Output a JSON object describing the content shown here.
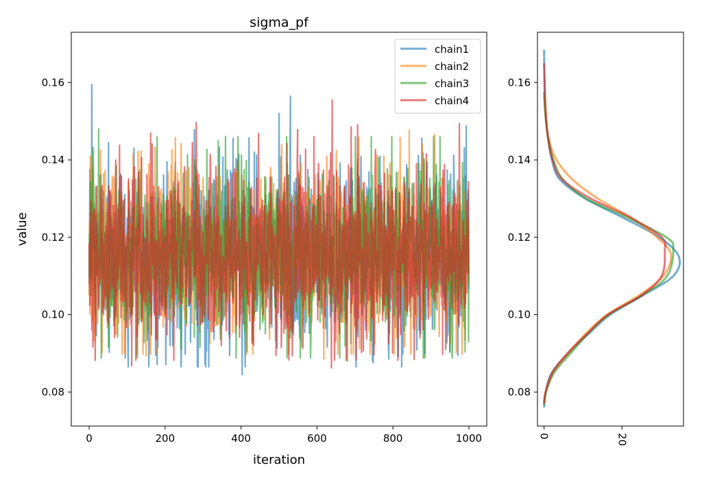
{
  "chart_data": [
    {
      "type": "line",
      "title": "sigma_pf",
      "xlabel": "iteration",
      "ylabel": "value",
      "xlim": [
        -47,
        1047
      ],
      "ylim": [
        0.0712,
        0.173
      ],
      "xticks": [
        0,
        200,
        400,
        600,
        800,
        1000
      ],
      "xtick_labels": [
        "0",
        "200",
        "400",
        "600",
        "800",
        "1000"
      ],
      "yticks": [
        0.08,
        0.1,
        0.12,
        0.14,
        0.16
      ],
      "ytick_labels": [
        "0.08",
        "0.10",
        "0.12",
        "0.14",
        "0.16"
      ],
      "grid": false,
      "legend_position": "top-right",
      "n_iterations": 1000,
      "series": [
        {
          "name": "chain1",
          "color": "#1f77b4",
          "mean": 0.1155,
          "sd": 0.0118,
          "min": 0.0845,
          "max": 0.1595,
          "peaks": [
            [
              7,
              0.1595
            ],
            [
              530,
              0.1565
            ],
            [
              500,
              0.152
            ],
            [
              993,
              0.1488
            ],
            [
              403,
              0.0845
            ],
            [
              53,
              0.0903
            ],
            [
              253,
              0.0898
            ],
            [
              175,
              0.0895
            ]
          ]
        },
        {
          "name": "chain2",
          "color": "#ff7f0e",
          "mean": 0.116,
          "sd": 0.0115,
          "min": 0.0878,
          "max": 0.1478,
          "peaks": [
            [
              843,
              0.1478
            ],
            [
              618,
              0.0885
            ],
            [
              910,
              0.1465
            ],
            [
              150,
              0.0893
            ],
            [
              3,
              0.141
            ]
          ]
        },
        {
          "name": "chain3",
          "color": "#2ca02c",
          "mean": 0.1158,
          "sd": 0.0114,
          "min": 0.0868,
          "max": 0.148,
          "peaks": [
            [
              25,
              0.148
            ],
            [
              340,
              0.145
            ],
            [
              680,
              0.088
            ],
            [
              950,
              0.0905
            ]
          ]
        },
        {
          "name": "chain4",
          "color": "#d62728",
          "mean": 0.1157,
          "sd": 0.0116,
          "min": 0.0862,
          "max": 0.1555,
          "peaks": [
            [
              640,
              0.1555
            ],
            [
              638,
              0.0862
            ],
            [
              112,
              0.0868
            ],
            [
              592,
              0.146
            ],
            [
              690,
              0.1485
            ]
          ]
        }
      ]
    },
    {
      "type": "line",
      "title": "",
      "xlabel": "",
      "ylabel": "",
      "xlim": [
        -1.7,
        35.8
      ],
      "ylim": [
        0.0712,
        0.173
      ],
      "xticks": [
        0,
        20
      ],
      "xtick_labels": [
        "0",
        "20"
      ],
      "yticks": [
        0.08,
        0.1,
        0.12,
        0.14,
        0.16
      ],
      "ytick_labels": [
        "0.08",
        "0.10",
        "0.12",
        "0.14",
        "0.16"
      ],
      "grid": false,
      "series": [
        {
          "name": "chain1",
          "color": "#1f77b4",
          "y_range": [
            0.076,
            0.1685
          ],
          "points": [
            [
              0.076,
              0.0
            ],
            [
              0.08,
              0.4
            ],
            [
              0.085,
              2.0
            ],
            [
              0.09,
              6.2
            ],
            [
              0.095,
              11.4
            ],
            [
              0.1,
              17.0
            ],
            [
              0.105,
              25.4
            ],
            [
              0.11,
              33.2
            ],
            [
              0.115,
              34.6
            ],
            [
              0.12,
              29.6
            ],
            [
              0.125,
              20.4
            ],
            [
              0.13,
              10.6
            ],
            [
              0.135,
              4.0
            ],
            [
              0.14,
              2.0
            ],
            [
              0.145,
              1.1
            ],
            [
              0.15,
              0.5
            ],
            [
              0.155,
              0.2
            ],
            [
              0.16,
              0.1
            ],
            [
              0.1685,
              0.0
            ]
          ]
        },
        {
          "name": "chain2",
          "color": "#ff7f0e",
          "y_range": [
            0.077,
            0.1565
          ],
          "points": [
            [
              0.077,
              0.0
            ],
            [
              0.08,
              0.4
            ],
            [
              0.085,
              2.3
            ],
            [
              0.09,
              6.2
            ],
            [
              0.095,
              10.6
            ],
            [
              0.1,
              16.2
            ],
            [
              0.105,
              24.4
            ],
            [
              0.11,
              30.6
            ],
            [
              0.1155,
              32.6
            ],
            [
              0.12,
              29.0
            ],
            [
              0.125,
              22.4
            ],
            [
              0.13,
              13.8
            ],
            [
              0.135,
              7.2
            ],
            [
              0.14,
              3.2
            ],
            [
              0.145,
              1.3
            ],
            [
              0.15,
              0.5
            ],
            [
              0.1565,
              0.0
            ]
          ]
        },
        {
          "name": "chain3",
          "color": "#2ca02c",
          "y_range": [
            0.0765,
            0.1575
          ],
          "points": [
            [
              0.0765,
              0.0
            ],
            [
              0.08,
              0.5
            ],
            [
              0.085,
              2.6
            ],
            [
              0.09,
              6.8
            ],
            [
              0.095,
              11.2
            ],
            [
              0.1,
              16.6
            ],
            [
              0.105,
              25.2
            ],
            [
              0.11,
              31.6
            ],
            [
              0.117,
              33.2
            ],
            [
              0.12,
              31.4
            ],
            [
              0.125,
              21.6
            ],
            [
              0.13,
              10.8
            ],
            [
              0.135,
              4.8
            ],
            [
              0.14,
              2.4
            ],
            [
              0.145,
              1.2
            ],
            [
              0.15,
              0.5
            ],
            [
              0.1575,
              0.0
            ]
          ]
        },
        {
          "name": "chain4",
          "color": "#d62728",
          "y_range": [
            0.077,
            0.165
          ],
          "points": [
            [
              0.077,
              0.0
            ],
            [
              0.08,
              0.4
            ],
            [
              0.085,
              2.1
            ],
            [
              0.09,
              6.0
            ],
            [
              0.095,
              11.0
            ],
            [
              0.1,
              16.4
            ],
            [
              0.105,
              25.0
            ],
            [
              0.11,
              30.2
            ],
            [
              0.1165,
              31.0
            ],
            [
              0.12,
              30.2
            ],
            [
              0.125,
              22.4
            ],
            [
              0.13,
              12.0
            ],
            [
              0.135,
              4.6
            ],
            [
              0.14,
              2.2
            ],
            [
              0.145,
              1.1
            ],
            [
              0.15,
              0.6
            ],
            [
              0.155,
              0.3
            ],
            [
              0.16,
              0.15
            ],
            [
              0.165,
              0.0
            ]
          ]
        }
      ]
    }
  ]
}
